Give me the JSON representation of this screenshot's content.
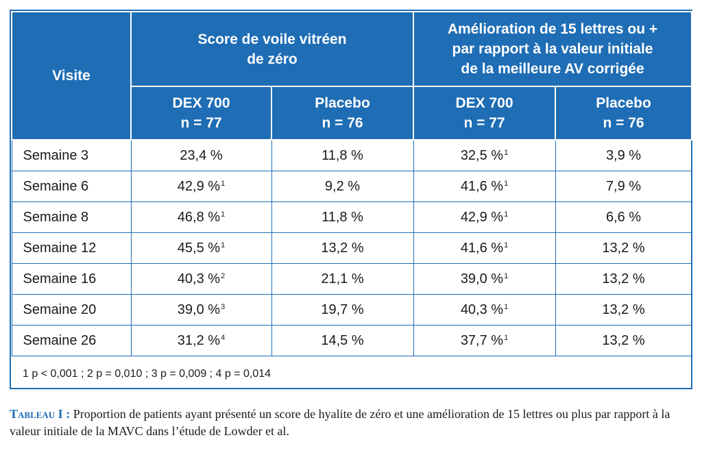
{
  "table": {
    "header": {
      "visite": "Visite",
      "group1": [
        "Score de voile vitréen",
        "de zéro"
      ],
      "group2": [
        "Amélioration de 15 lettres ou +",
        "par rapport à la valeur initiale",
        "de la meilleure AV corrigée"
      ],
      "subcols": [
        {
          "name": "DEX 700",
          "n": "n = 77"
        },
        {
          "name": "Placebo",
          "n": "n = 76"
        },
        {
          "name": "DEX 700",
          "n": "n = 77"
        },
        {
          "name": "Placebo",
          "n": "n = 76"
        }
      ]
    },
    "rows": [
      {
        "label": "Semaine 3",
        "cells": [
          {
            "v": "23,4 %",
            "s": ""
          },
          {
            "v": "11,8 %",
            "s": ""
          },
          {
            "v": "32,5 %",
            "s": "1"
          },
          {
            "v": "3,9 %",
            "s": ""
          }
        ]
      },
      {
        "label": "Semaine 6",
        "cells": [
          {
            "v": "42,9 %",
            "s": "1"
          },
          {
            "v": "9,2 %",
            "s": ""
          },
          {
            "v": "41,6 %",
            "s": "1"
          },
          {
            "v": "7,9 %",
            "s": ""
          }
        ]
      },
      {
        "label": "Semaine 8",
        "cells": [
          {
            "v": "46,8 %",
            "s": "1"
          },
          {
            "v": "11,8 %",
            "s": ""
          },
          {
            "v": "42,9 %",
            "s": "1"
          },
          {
            "v": "6,6 %",
            "s": ""
          }
        ]
      },
      {
        "label": "Semaine 12",
        "cells": [
          {
            "v": "45,5 %",
            "s": "1"
          },
          {
            "v": "13,2 %",
            "s": ""
          },
          {
            "v": "41,6 %",
            "s": "1"
          },
          {
            "v": "13,2 %",
            "s": ""
          }
        ]
      },
      {
        "label": "Semaine 16",
        "cells": [
          {
            "v": "40,3 %",
            "s": "2"
          },
          {
            "v": "21,1 %",
            "s": ""
          },
          {
            "v": "39,0 %",
            "s": "1"
          },
          {
            "v": "13,2 %",
            "s": ""
          }
        ]
      },
      {
        "label": "Semaine 20",
        "cells": [
          {
            "v": "39,0 %",
            "s": "3"
          },
          {
            "v": "19,7 %",
            "s": ""
          },
          {
            "v": "40,3 %",
            "s": "1"
          },
          {
            "v": "13,2 %",
            "s": ""
          }
        ]
      },
      {
        "label": "Semaine 26",
        "cells": [
          {
            "v": "31,2 %",
            "s": "4"
          },
          {
            "v": "14,5 %",
            "s": ""
          },
          {
            "v": "37,7 %",
            "s": "1"
          },
          {
            "v": "13,2 %",
            "s": ""
          }
        ]
      }
    ],
    "footnote": "1 p < 0,001 ; 2 p = 0,010 ; 3 p = 0,009 ; 4 p = 0,014"
  },
  "caption": {
    "label": "Tableau I :",
    "text": "Proportion de patients ayant présenté un score de hyalite de zéro et une amélioration de 15 lettres ou plus par rapport à la valeur initiale de la MAVC dans l’étude de Lowder et al."
  },
  "colors": {
    "header_bg": "#1f6db5",
    "border": "#1f6db5"
  }
}
